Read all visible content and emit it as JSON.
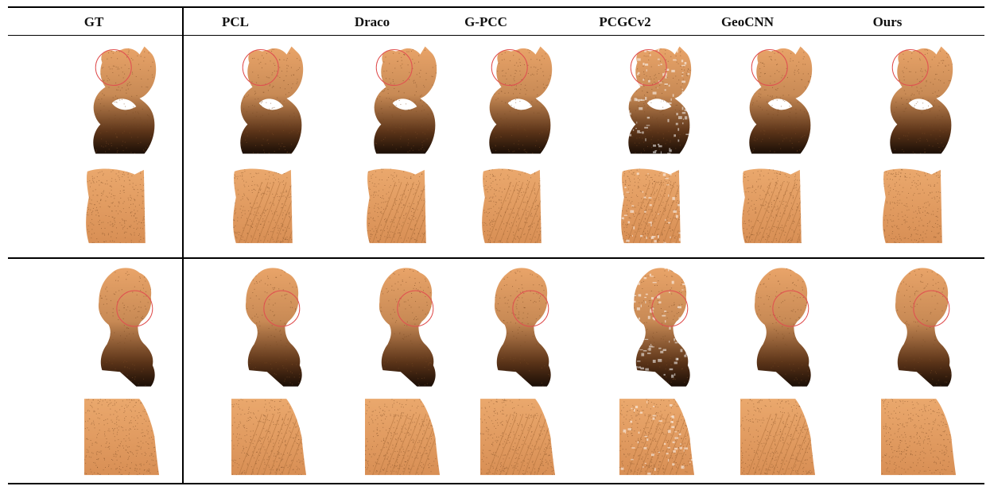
{
  "figure": {
    "columns": [
      {
        "key": "gt",
        "label": "GT"
      },
      {
        "key": "pcl",
        "label": "PCL"
      },
      {
        "key": "draco",
        "label": "Draco"
      },
      {
        "key": "gpcc",
        "label": "G-PCC"
      },
      {
        "key": "pcgcv2",
        "label": "PCGCv2"
      },
      {
        "key": "geocnn",
        "label": "GeoCNN"
      },
      {
        "key": "ours",
        "label": "Ours"
      }
    ],
    "rows": [
      {
        "key": "cat-full",
        "object": "cat",
        "view": "full"
      },
      {
        "key": "cat-zoom",
        "object": "cat",
        "view": "zoom"
      },
      {
        "key": "bust-full",
        "object": "bust",
        "view": "full"
      },
      {
        "key": "bust-zoom",
        "object": "bust",
        "view": "zoom"
      }
    ],
    "colors": {
      "point_light": "#e9a469",
      "point_mid": "#c88a55",
      "point_dark": "#1a0e06",
      "highlight_circle": "#e05050",
      "rule": "#000000"
    }
  }
}
